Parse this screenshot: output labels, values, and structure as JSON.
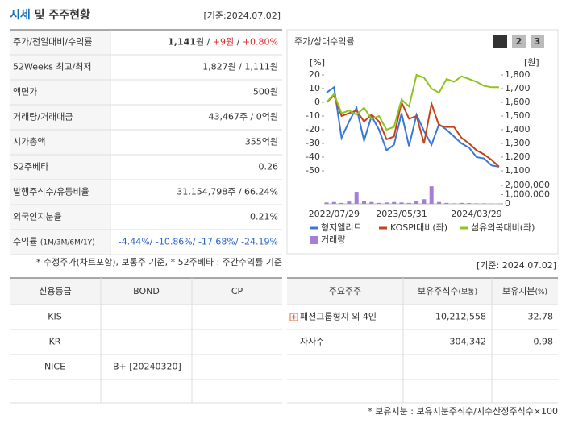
{
  "header": {
    "title_main": "시세",
    "title_rest": " 및 주주현황",
    "date": "[기준:2024.07.02]"
  },
  "quote_table": {
    "rows": [
      {
        "label": [
          "주가/전일대비/수익률"
        ],
        "value": [
          "1,141",
          "원 / ",
          "+9원",
          " / ",
          "+0.80%"
        ]
      },
      {
        "label": [
          "52Weeks 최고/최저"
        ],
        "value": [
          "1,827원 / 1,111원"
        ]
      },
      {
        "label": [
          "액면가"
        ],
        "value": [
          "500원"
        ]
      },
      {
        "label": [
          "거래량/거래대금"
        ],
        "value": [
          "43,467주 / 0억원"
        ]
      },
      {
        "label": [
          "시가총액"
        ],
        "value": [
          "355억원"
        ]
      },
      {
        "label": [
          "52주베타"
        ],
        "value": [
          "0.26"
        ]
      },
      {
        "label": [
          "발행주식수/유동비율"
        ],
        "value": [
          "31,154,798주 / 66.24%"
        ]
      },
      {
        "label": [
          "외국인지분율"
        ],
        "value": [
          "0.21%"
        ]
      },
      {
        "label": [
          "수익률 ",
          "(1M/3M/6M/1Y)"
        ],
        "value": [
          "-4.44%/ -10.86%/ -17.68%/ -24.19%"
        ]
      }
    ],
    "note": "* 수정주가(차트포함), 보통주 기준, * 52주베타 : 주간수익률 기준"
  },
  "chart": {
    "type": "line",
    "title": "주가/상대수익률",
    "buttons": [
      "1",
      "2",
      "3"
    ],
    "y_unit": "[%]",
    "y2_unit": "[원]",
    "categories": [
      null,
      "2022/07/29",
      null,
      null,
      null,
      null,
      null,
      null,
      null,
      null,
      "2023/05/31",
      null,
      null,
      null,
      null,
      null,
      null,
      null,
      null,
      null,
      "2024/03/29",
      null,
      null,
      null
    ],
    "ylim": [
      -55,
      25
    ],
    "yticks": [
      20,
      10,
      0,
      -10,
      -20,
      -30,
      -40,
      -50
    ],
    "y2lim": [
      1050,
      1850
    ],
    "y2ticks": [
      {
        "value": 1800,
        "label": "1,800"
      },
      {
        "value": 1700,
        "label": "1,700"
      },
      {
        "value": 1600,
        "label": "1,600"
      },
      {
        "value": 1500,
        "label": "1,500"
      },
      {
        "value": 1400,
        "label": "1,400"
      },
      {
        "value": 1300,
        "label": "1,300"
      },
      {
        "value": 1200,
        "label": "1,200"
      },
      {
        "value": 1100,
        "label": "1,100"
      }
    ],
    "vlim": [
      0,
      2000000
    ],
    "vticks": [
      {
        "value": 2000000,
        "label": "2,000,000"
      },
      {
        "value": 1000000,
        "label": "1,000,000"
      },
      0
    ],
    "series": [
      {
        "name": "형지엘리트",
        "color": "#3a78d8",
        "values": [
          7,
          11,
          -26,
          -14,
          -4,
          -28,
          -10,
          -20,
          -35,
          -31,
          -8,
          -32,
          -9,
          -21,
          -31,
          -16,
          -20,
          -25,
          -30,
          -33,
          -40,
          -41,
          -46,
          -47
        ]
      },
      {
        "name": "KOSPI대비(좌)",
        "color": "#c4421a",
        "values": [
          0,
          5,
          -10,
          -8,
          -6,
          -14,
          -9,
          -14,
          -27,
          -25,
          0,
          -12,
          -10,
          -30,
          -1,
          -17,
          -18,
          -18,
          -26,
          -30,
          -35,
          -38,
          -42,
          -47
        ]
      },
      {
        "name": "섬유의복대비(좌)",
        "color": "#8fc31f",
        "values": [
          0,
          6,
          -8,
          -6,
          -9,
          -4,
          -12,
          -10,
          -20,
          -18,
          2,
          -3,
          20,
          18,
          10,
          7,
          17,
          15,
          19,
          17,
          15,
          12,
          11,
          11
        ]
      },
      {
        "name": "거래량",
        "color": "#a57fd6",
        "type": "bar",
        "axis": "volume",
        "values": [
          150000,
          200000,
          100000,
          250000,
          1300000,
          300000,
          200000,
          100000,
          150000,
          200000,
          150000,
          100000,
          300000,
          500000,
          1900000,
          200000,
          100000,
          50000,
          100000,
          80000,
          50000,
          50000,
          30000,
          40000
        ]
      }
    ]
  },
  "credit_table": {
    "headers": [
      "신용등급",
      "BOND",
      "CP"
    ],
    "rows": [
      [
        "KIS"
      ],
      [
        "KR"
      ],
      [
        "NICE",
        "B+ [20240320]"
      ]
    ]
  },
  "shareholder_table": {
    "date": "[기준: 2024.07.02]",
    "headers": [
      [
        "주요주주"
      ],
      [
        "보유주식수",
        "(보통)"
      ],
      [
        "보유지분",
        "(%)"
      ]
    ],
    "rows": [
      [
        "패션그룹형지 외 4인",
        "10,212,558",
        "32.78"
      ],
      [
        "자사주",
        "304,342",
        "0.98"
      ]
    ],
    "note": "* 보유지분 : 보유지분주식수/지수산정주식수×100"
  }
}
